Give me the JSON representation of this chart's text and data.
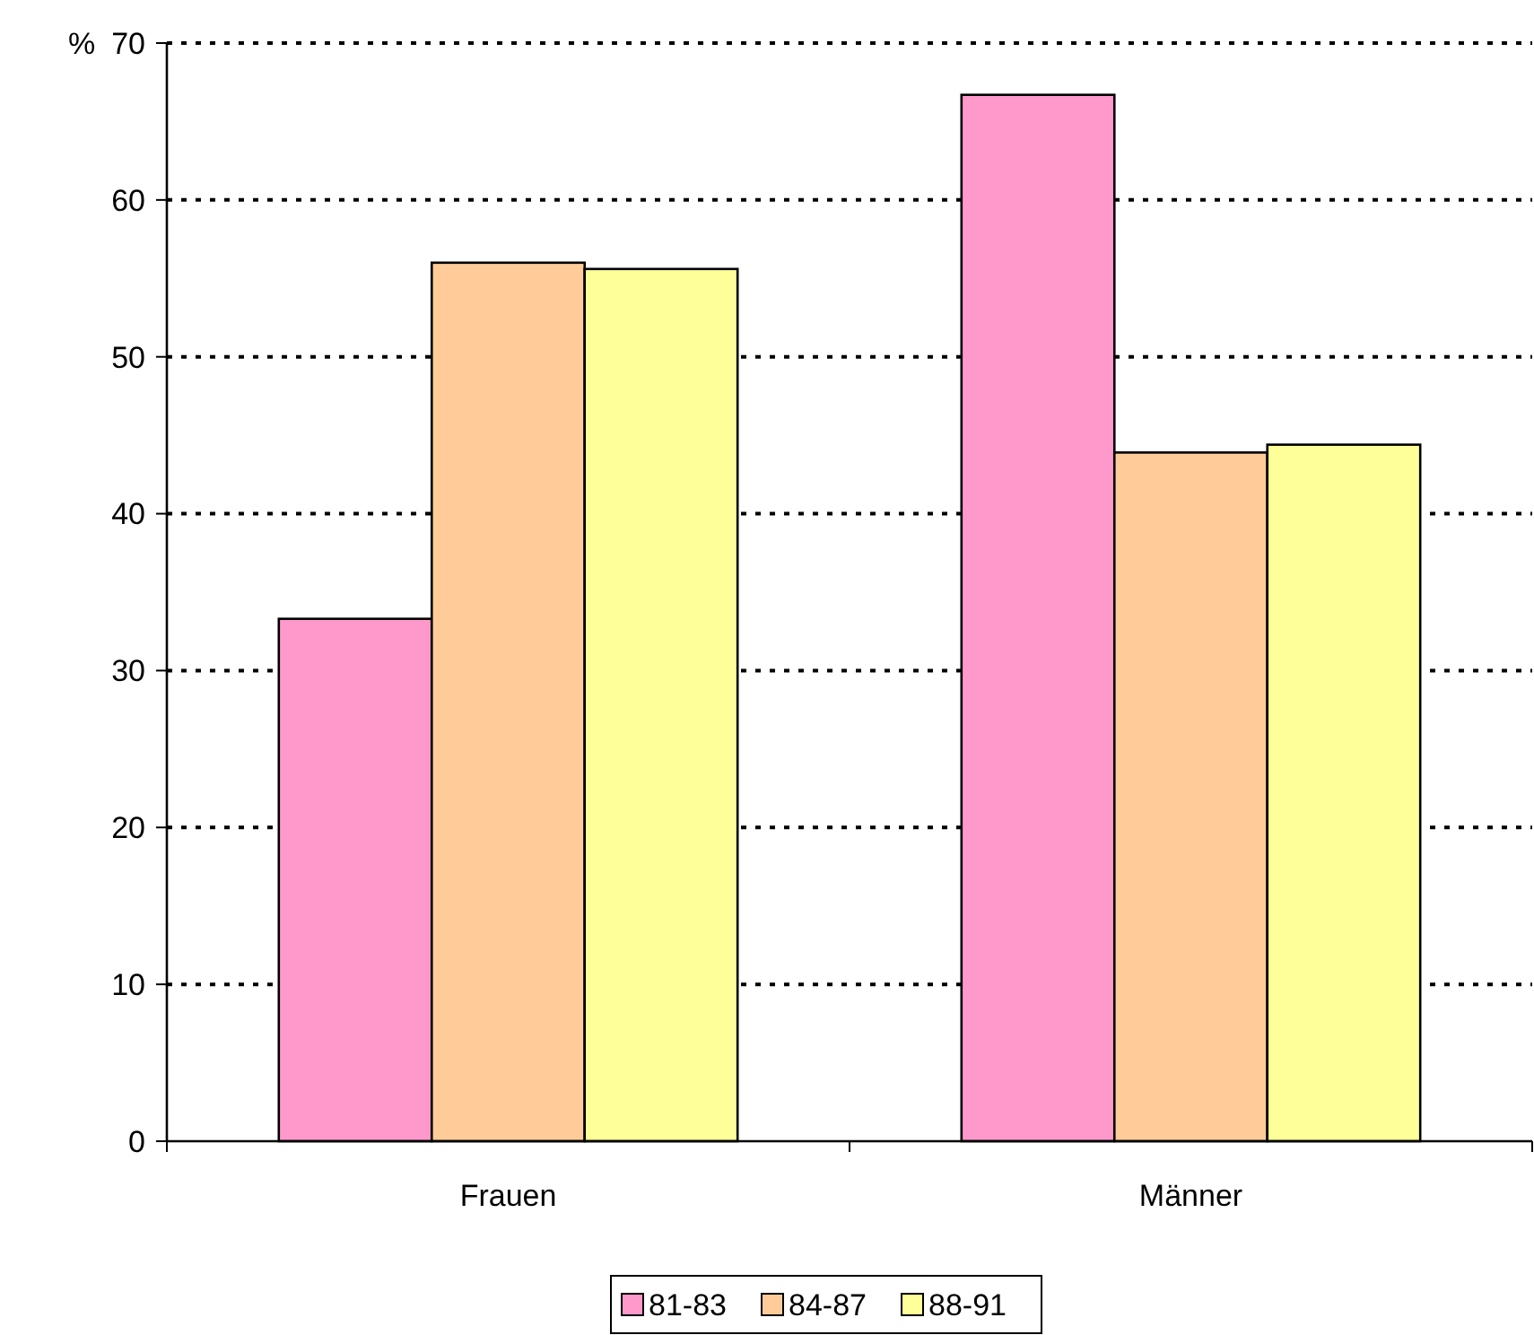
{
  "chart_data": {
    "type": "bar",
    "ylabel": "%",
    "categories": [
      "Frauen",
      "Männer"
    ],
    "series": [
      {
        "name": "81-83",
        "color": "#ff99cc",
        "values": [
          33.3,
          66.7
        ]
      },
      {
        "name": "84-87",
        "color": "#ffcc99",
        "values": [
          56.0,
          43.9
        ]
      },
      {
        "name": "88-91",
        "color": "#ffff99",
        "values": [
          55.6,
          44.4
        ]
      }
    ],
    "ylim": [
      0,
      70
    ],
    "yticks": [
      0,
      10,
      20,
      30,
      40,
      50,
      60,
      70
    ],
    "grid": "y",
    "legend": "bottom"
  }
}
